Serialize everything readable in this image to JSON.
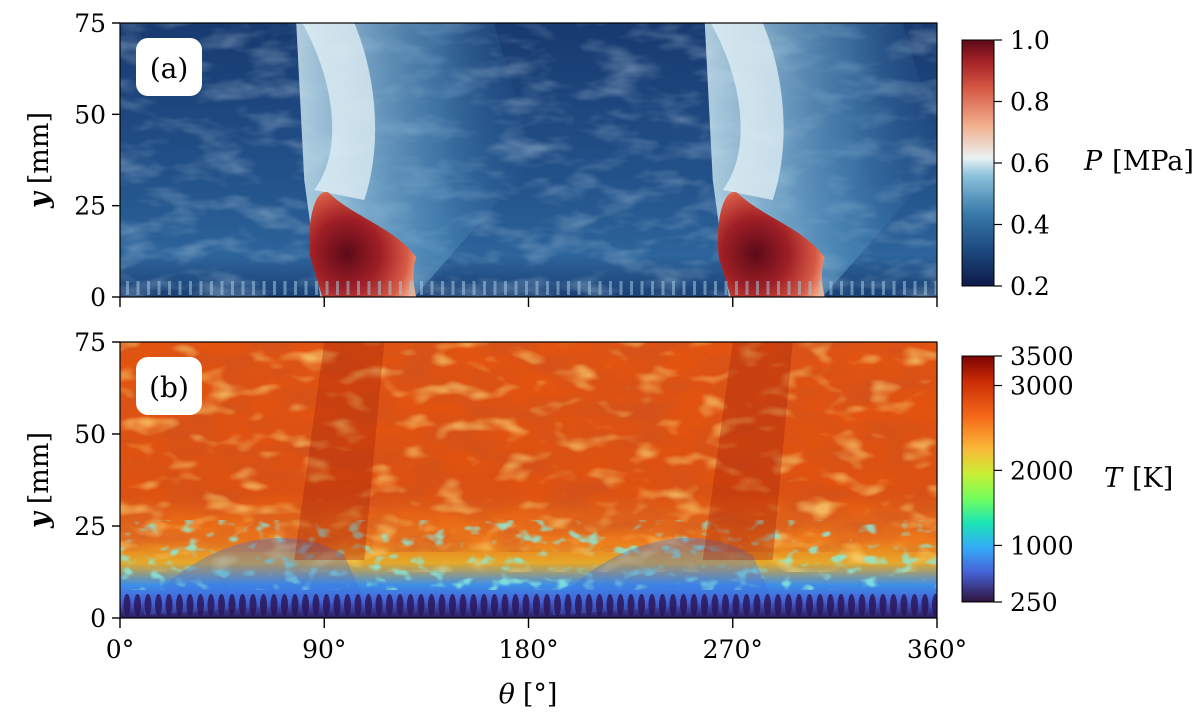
{
  "chart_data": [
    {
      "type": "heatmap",
      "panel_label": "(a)",
      "xlabel": "",
      "ylabel_var": "y",
      "ylabel_unit": "[mm]",
      "xlim": [
        0,
        360
      ],
      "ylim": [
        0,
        75
      ],
      "yticks": [
        0,
        25,
        50,
        75
      ],
      "xticks": [
        0,
        90,
        180,
        270,
        360
      ],
      "colorbar": {
        "var": "P",
        "unit": "[MPa]",
        "range": [
          0.2,
          1.0
        ],
        "ticks": [
          "0.2",
          "0.4",
          "0.6",
          "0.8",
          "1.0"
        ],
        "tick_values": [
          0.2,
          0.4,
          0.6,
          0.8,
          1.0
        ],
        "colors": [
          "#0d1a4a",
          "#1d4a80",
          "#3a7cab",
          "#8cc3dc",
          "#eaf1f3",
          "#f2b08e",
          "#d65a45",
          "#a01f26",
          "#5c0a18"
        ]
      },
      "features": {
        "detonation_fronts_deg": [
          90,
          270
        ],
        "high_pressure_height_mm": 30
      }
    },
    {
      "type": "heatmap",
      "panel_label": "(b)",
      "xlabel_var": "θ",
      "xlabel_unit": "[°]",
      "ylabel_var": "y",
      "ylabel_unit": "[mm]",
      "xlim": [
        0,
        360
      ],
      "ylim": [
        0,
        75
      ],
      "yticks": [
        0,
        25,
        50,
        75
      ],
      "xticks": [
        0,
        90,
        180,
        270,
        360
      ],
      "xtick_labels": [
        "0°",
        "90°",
        "180°",
        "270°",
        "360°"
      ],
      "colorbar": {
        "var": "T",
        "unit": "[K]",
        "range": [
          250,
          3500
        ],
        "ticks": [
          "250",
          "1000",
          "2000",
          "3000",
          "3500"
        ],
        "tick_values": [
          250,
          1000,
          2000,
          3000,
          3500
        ],
        "colors": [
          "#30123b",
          "#4662d7",
          "#36aaf9",
          "#1ae4b6",
          "#72fe5e",
          "#c8ef34",
          "#faba39",
          "#f66b19",
          "#ca2a04",
          "#7a0403"
        ]
      }
    }
  ]
}
